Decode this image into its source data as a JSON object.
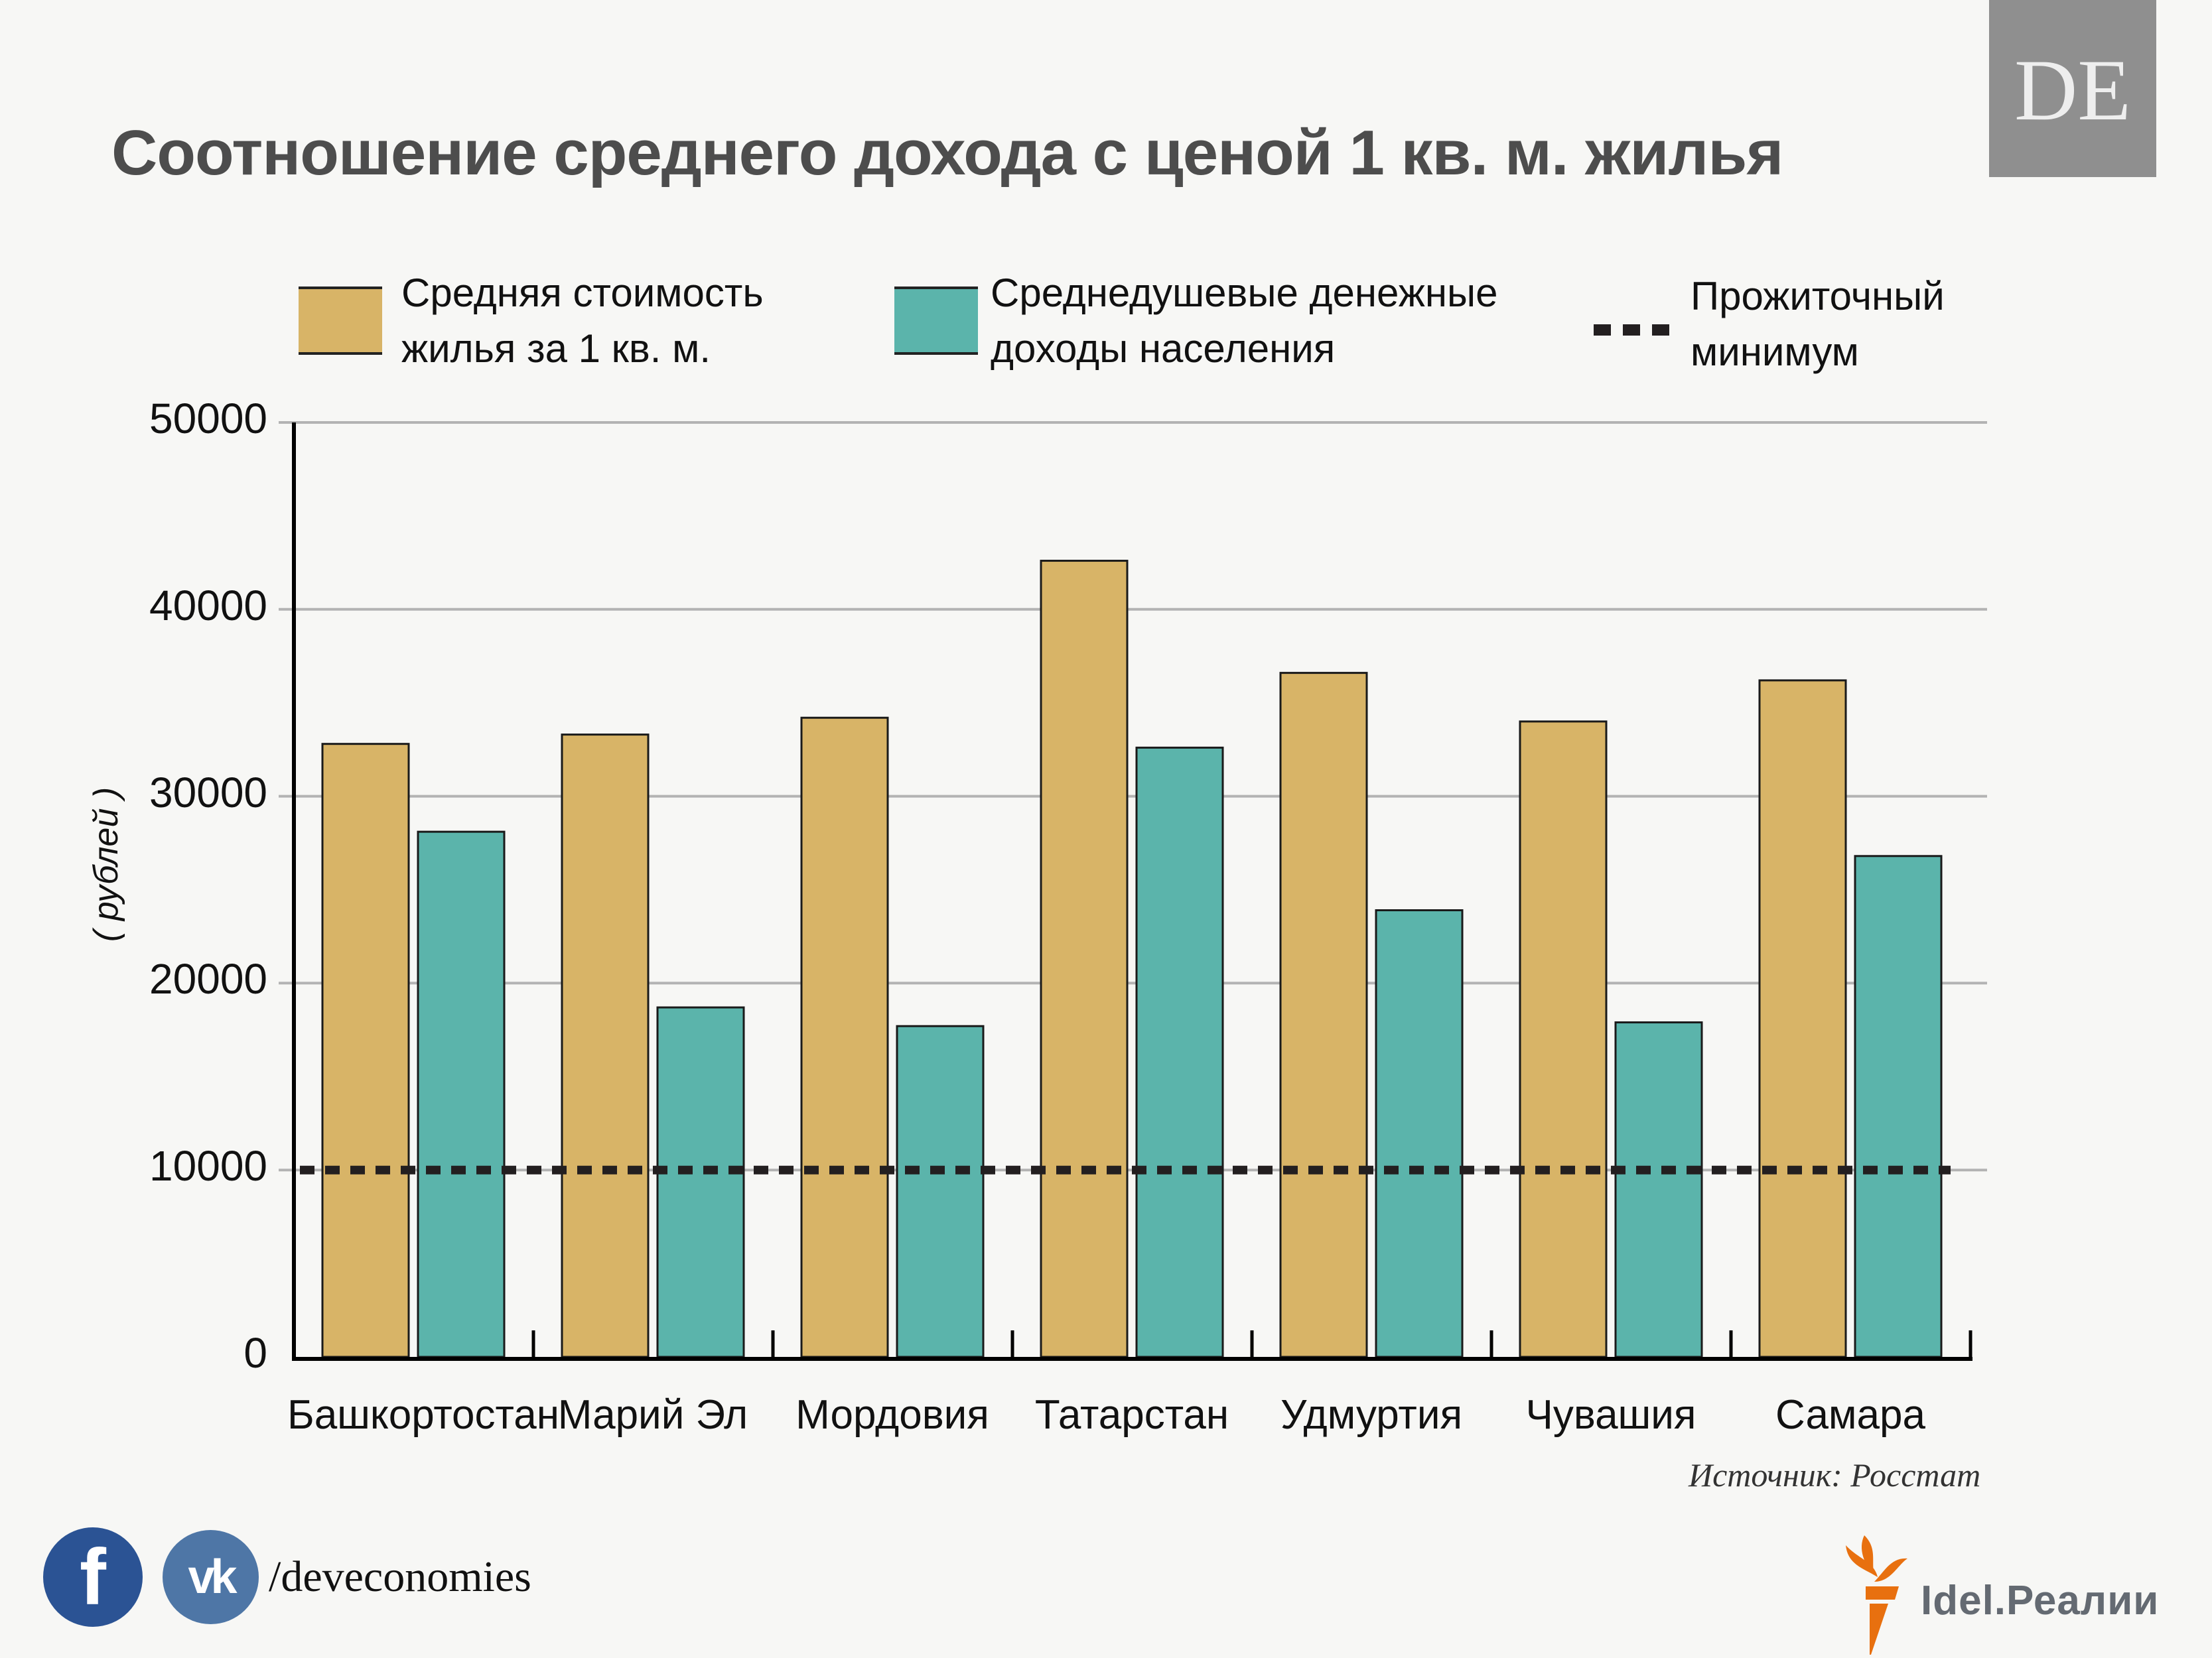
{
  "title": "Соотношение среднего дохода с ценой 1 кв. м. жилья",
  "brand_badge": "DE",
  "legend": [
    {
      "line1": "Средняя стоимость",
      "line2": "жилья  за 1 кв. м.",
      "color": "#d8b467",
      "kind": "bar"
    },
    {
      "line1": "Среднедушевые денежные",
      "line2": "доходы населения",
      "color": "#5bb4ab",
      "kind": "bar"
    },
    {
      "line1": "Прожиточный",
      "line2": "минимум",
      "color": "#231f20",
      "kind": "dashed-line"
    }
  ],
  "chart_data": {
    "type": "bar",
    "title": "Соотношение среднего дохода с ценой 1 кв. м. жилья",
    "xlabel": "",
    "ylabel": "( рублей )",
    "ylim": [
      0,
      50000
    ],
    "yticks": [
      "0",
      "10000",
      "20000",
      "30000",
      "40000",
      "50000"
    ],
    "yticks_values": [
      0,
      10000,
      20000,
      30000,
      40000,
      50000
    ],
    "grid": true,
    "categories": [
      "Башкортостан",
      "Марий Эл",
      "Мордовия",
      "Татарстан",
      "Удмуртия",
      "Чувашия",
      "Самара"
    ],
    "series": [
      {
        "name": "Средняя стоимость жилья  за 1 кв. м.",
        "color": "#d8b467",
        "values": [
          32800,
          33300,
          34200,
          42600,
          36600,
          34000,
          36200
        ]
      },
      {
        "name": "Среднедушевые денежные доходы населения",
        "color": "#5bb4ab",
        "values": [
          28100,
          18700,
          17700,
          32600,
          23900,
          17900,
          26800
        ]
      }
    ],
    "reference_line": {
      "name": "Прожиточный минимум",
      "value": 10000,
      "style": "dashed",
      "color": "#231f20"
    },
    "legend_position": "top"
  },
  "source": "Источник: Росстат",
  "footer": {
    "facebook_icon": "facebook-icon",
    "vk_icon": "vk-icon",
    "vk_glyph": "vk",
    "fb_glyph": "f",
    "handle": "/deveconomies"
  },
  "publisher_logo": {
    "text": "Idel.Реалии",
    "torch_color": "#e8700f",
    "text_color": "#646a72"
  }
}
